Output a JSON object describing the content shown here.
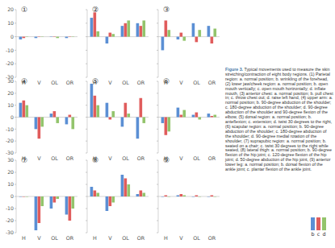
{
  "chart_data": [
    {
      "type": "bar",
      "title": "①",
      "categories": [
        "H",
        "V",
        "OL",
        "OR"
      ],
      "ylim": [
        -30,
        20
      ],
      "yticks": [
        -30,
        -20,
        -10,
        0,
        10,
        20
      ],
      "tick_labels": true,
      "series": [
        {
          "name": "b",
          "color": "#5b8fd4",
          "values": [
            -2,
            -1,
            0,
            -1
          ]
        },
        {
          "name": "c",
          "color": "#e05c5c",
          "values": [
            -1,
            0,
            0,
            0
          ]
        },
        {
          "name": "d",
          "color": "#93c46c",
          "values": [
            0,
            0,
            -1,
            0
          ]
        }
      ]
    },
    {
      "type": "bar",
      "title": "②",
      "categories": [
        "H",
        "V",
        "OL",
        "OR"
      ],
      "ylim": [
        -30,
        20
      ],
      "yticks": [
        -30,
        -20,
        -10,
        0,
        10,
        20
      ],
      "tick_labels": "x",
      "series": [
        {
          "name": "b",
          "color": "#5b8fd4",
          "values": [
            14,
            -5,
            8,
            10
          ]
        },
        {
          "name": "c",
          "color": "#e05c5c",
          "values": [
            18,
            3,
            10,
            8
          ]
        },
        {
          "name": "d",
          "color": "#93c46c",
          "values": [
            4,
            2,
            12,
            12
          ]
        }
      ]
    },
    {
      "type": "bar",
      "title": "③",
      "categories": [
        "H",
        "V",
        "OL",
        "OR"
      ],
      "ylim": [
        -30,
        20
      ],
      "yticks": [
        -30,
        -20,
        -10,
        0,
        10,
        20
      ],
      "tick_labels": "x",
      "series": [
        {
          "name": "b",
          "color": "#5b8fd4",
          "values": [
            -10,
            -2,
            10,
            8
          ]
        },
        {
          "name": "c",
          "color": "#e05c5c",
          "values": [
            12,
            3,
            -4,
            -5
          ]
        },
        {
          "name": "d",
          "color": "#93c46c",
          "values": [
            5,
            -3,
            5,
            6
          ]
        }
      ]
    },
    {
      "type": "bar",
      "title": "④",
      "categories": [
        "H",
        "V",
        "OL",
        "OR"
      ],
      "ylim": [
        -30,
        30
      ],
      "yticks": [
        -30,
        -20,
        -10,
        0,
        10,
        20,
        30
      ],
      "tick_labels": true,
      "series": [
        {
          "name": "b",
          "color": "#5b8fd4",
          "values": [
            12,
            -10,
            3,
            -6
          ]
        },
        {
          "name": "c",
          "color": "#e05c5c",
          "values": [
            14,
            -18,
            5,
            2
          ]
        },
        {
          "name": "d",
          "color": "#93c46c",
          "values": [
            10,
            -8,
            -5,
            -10
          ]
        }
      ]
    },
    {
      "type": "bar",
      "title": "⑤",
      "categories": [
        "H",
        "V",
        "OL",
        "OR"
      ],
      "ylim": [
        -30,
        30
      ],
      "yticks": [
        -30,
        -20,
        -10,
        0,
        10,
        20,
        30
      ],
      "tick_labels": "x",
      "series": [
        {
          "name": "b",
          "color": "#5b8fd4",
          "values": [
            28,
            12,
            -8,
            -18
          ]
        },
        {
          "name": "c",
          "color": "#e05c5c",
          "values": [
            18,
            -2,
            12,
            16
          ]
        },
        {
          "name": "d",
          "color": "#93c46c",
          "values": [
            10,
            5,
            3,
            -5
          ]
        }
      ]
    },
    {
      "type": "bar",
      "title": "⑥",
      "categories": [
        "H",
        "V",
        "OL",
        "OR"
      ],
      "ylim": [
        -30,
        30
      ],
      "yticks": [
        -30,
        -20,
        -10,
        0,
        10,
        20,
        30
      ],
      "tick_labels": "x",
      "series": [
        {
          "name": "b",
          "color": "#5b8fd4",
          "values": [
            -5,
            8,
            2,
            3
          ]
        },
        {
          "name": "c",
          "color": "#e05c5c",
          "values": [
            -15,
            2,
            4,
            1
          ]
        },
        {
          "name": "d",
          "color": "#93c46c",
          "values": [
            -12,
            6,
            -2,
            2
          ]
        }
      ]
    },
    {
      "type": "bar",
      "title": "⑦",
      "categories": [
        "H",
        "V",
        "OL",
        "OR"
      ],
      "ylim": [
        -30,
        30
      ],
      "yticks": [
        -30,
        -20,
        -10,
        0,
        10,
        20,
        30
      ],
      "tick_labels": true,
      "series": [
        {
          "name": "b",
          "color": "#5b8fd4",
          "values": [
            0,
            -28,
            -10,
            -15
          ]
        },
        {
          "name": "c",
          "color": "#e05c5c",
          "values": [
            0,
            -22,
            -5,
            -20
          ]
        },
        {
          "name": "d",
          "color": "#93c46c",
          "values": [
            0,
            -8,
            -2,
            -10
          ]
        }
      ]
    },
    {
      "type": "bar",
      "title": "⑧",
      "categories": [
        "H",
        "V",
        "OL",
        "OR"
      ],
      "ylim": [
        -30,
        30
      ],
      "yticks": [
        -30,
        -20,
        -10,
        0,
        10,
        20,
        30
      ],
      "tick_labels": "x",
      "series": [
        {
          "name": "b",
          "color": "#5b8fd4",
          "values": [
            8,
            -12,
            18,
            2
          ]
        },
        {
          "name": "c",
          "color": "#e05c5c",
          "values": [
            5,
            -8,
            15,
            5
          ]
        },
        {
          "name": "d",
          "color": "#93c46c",
          "values": [
            3,
            -5,
            10,
            3
          ]
        }
      ]
    },
    {
      "type": "bar",
      "title": "⑨",
      "categories": [
        "H",
        "V",
        "OL",
        "OR"
      ],
      "ylim": [
        -30,
        30
      ],
      "yticks": [
        -30,
        -20,
        -10,
        0,
        10,
        20,
        30
      ],
      "tick_labels": "x",
      "series": [
        {
          "name": "b",
          "color": "#5b8fd4",
          "values": [
            0,
            1,
            0,
            0
          ]
        },
        {
          "name": "c",
          "color": "#e05c5c",
          "values": [
            1,
            2,
            1,
            1
          ]
        },
        {
          "name": "d",
          "color": "#93c46c",
          "values": [
            0,
            1,
            0,
            0
          ]
        }
      ]
    }
  ],
  "caption": {
    "label": "Figure 3.",
    "text": "Typical movements used to measure the skin stretching/contraction of eight body regions. (1) Parietal region: a. normal position; b. wrinkling of the forehead, (2) lower jaw/cheek region: a. normal position; b. open mouth vertically; c. open mouth horizontally; d. inflate mouth, (3) anterior chest: a. normal position; b. pull chest in; c. throw chest out; d. raise left hand, (4) upper arm: a. normal position; b. 90-degree abduction of the shoulder; c. 180-degree abduction of the shoulder; d. 90-degree abduction of the shoulder and 90-degree flexion of the elbow, (5) dorsal region: a. normal position; b. anteflexion; c. extension; d. twist 30 degrees to the right, (6) scapular region: a. normal position; b. 90-degree abduction of the shoulder; c. 180-degree abduction of the shoulder; d. 90-degree medial rotation of the shoulder, (7) suprapubic region: a. normal position; b. seated on a chair; c. twist 30 degrees to the right while seated, (8) lateral thigh: a. normal position; b. 90-degree flexion of the hip joint; c. 120-degree flexion of the hip joint; d. 50-degree abduction of the hip joint, (9) anterior lower leg: a. normal position; b. dorsal flexion of the ankle joint; c. plantar flexion of the ankle joint."
  }
}
